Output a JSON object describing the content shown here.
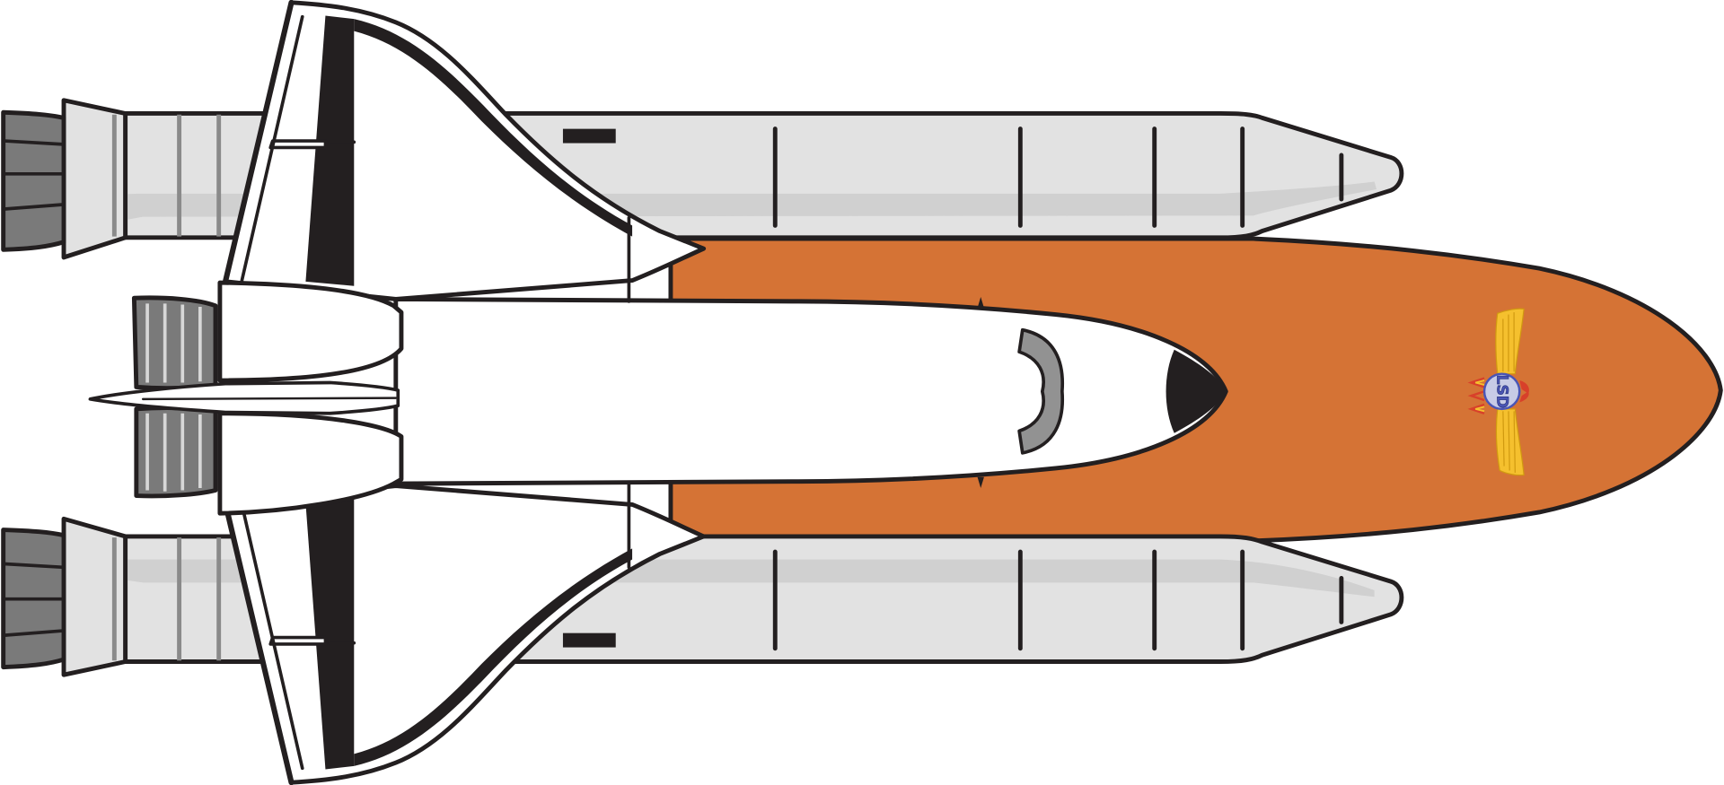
{
  "illustration": {
    "subject": "space-shuttle-stack",
    "colors": {
      "outline": "#231f20",
      "booster_body": "#e2e2e2",
      "booster_shade": "#d0d0d0",
      "booster_rib": "#8a8a8a",
      "nozzle": "#7a7a7a",
      "orbiter": "#ffffff",
      "external_tank": "#d57335",
      "window": "#929292",
      "logo_wings": "#f5c02e",
      "logo_ring": "#4a55b5",
      "logo_flame": "#d8402a"
    },
    "logo": {
      "name": "wings-emblem",
      "text": "LSD"
    }
  }
}
